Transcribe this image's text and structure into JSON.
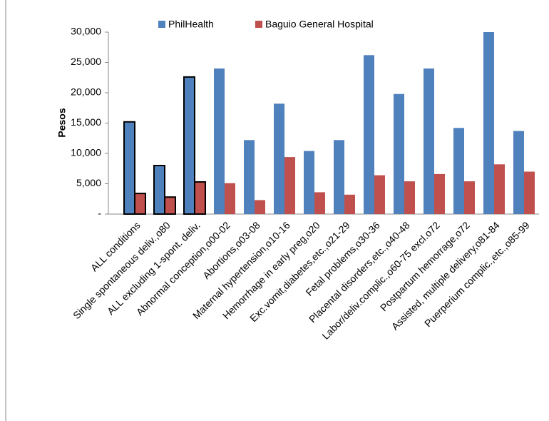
{
  "chart_data": {
    "type": "bar",
    "y_label": "Pesos",
    "categories": [
      "ALL conditions",
      "Single spontaneous deliv.,o80",
      "ALL excluding 1-spont. deliv.",
      "Abnormal conception,o00-02",
      "Abortions,o03-08",
      "Maternal hypertension,o10-16",
      "Hemorrhage in early preg,o20",
      "Exc.vomit,diabetes,etc.,o21-29",
      "Fetal problems,o30-36",
      "Placental disorders,etc.,o40-48",
      "Labor/deliv.complic.,o60-75 excl.o72",
      "Postpartum hemorrage,o72",
      "Assisted, multiple delivery,o81-84",
      "Puerperium complic.,etc.,o85-99"
    ],
    "series": [
      {
        "name": "PhilHealth",
        "color": "#4f81bd",
        "values": [
          15200,
          8000,
          22600,
          24000,
          12200,
          18200,
          10400,
          12200,
          26200,
          19800,
          24000,
          14200,
          30000,
          13700
        ]
      },
      {
        "name": "Baguio General Hospital",
        "color": "#c0504d",
        "values": [
          3400,
          2800,
          5300,
          5100,
          2300,
          9400,
          3600,
          3200,
          6400,
          5400,
          6600,
          5400,
          8200,
          7000
        ]
      }
    ],
    "outlined_categories": [
      0,
      1,
      2
    ],
    "ylim": [
      0,
      30000
    ],
    "yticks": [
      {
        "value": 0,
        "label": "-"
      },
      {
        "value": 5000,
        "label": "5,000"
      },
      {
        "value": 10000,
        "label": "10,000"
      },
      {
        "value": 15000,
        "label": "15,000"
      },
      {
        "value": 20000,
        "label": "20,000"
      },
      {
        "value": 25000,
        "label": "25,000"
      },
      {
        "value": 30000,
        "label": "30,000"
      }
    ],
    "legend": "top"
  }
}
